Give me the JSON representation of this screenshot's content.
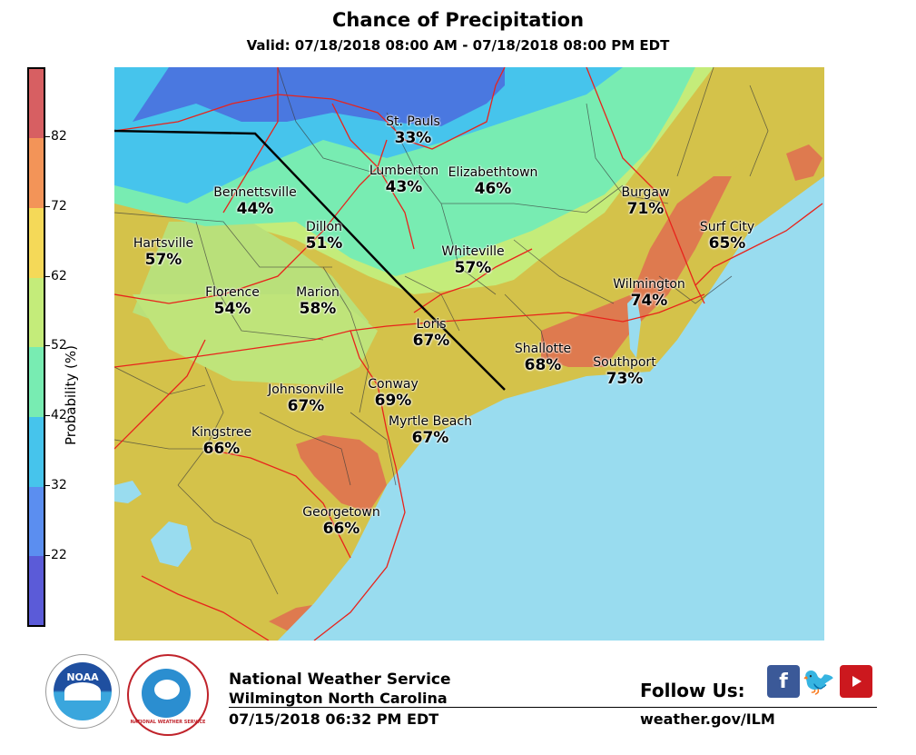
{
  "header": {
    "title": "Chance of Precipitation",
    "valid": "Valid: 07/18/2018 08:00 AM - 07/18/2018 08:00 PM EDT"
  },
  "legend": {
    "label": "Probability (%)",
    "ticks": [
      "82",
      "72",
      "62",
      "52",
      "42",
      "32",
      "22"
    ],
    "colors": [
      "#d75f62",
      "#f39458",
      "#f5d958",
      "#c4ec7a",
      "#78ecb2",
      "#46c4ec",
      "#5b8ef0",
      "#5b5bd8"
    ]
  },
  "cities": [
    {
      "name": "St. Pauls",
      "pct": "33%"
    },
    {
      "name": "Lumberton",
      "pct": "43%"
    },
    {
      "name": "Elizabethtown",
      "pct": "46%"
    },
    {
      "name": "Bennettsville",
      "pct": "44%"
    },
    {
      "name": "Burgaw",
      "pct": "71%"
    },
    {
      "name": "Dillon",
      "pct": "51%"
    },
    {
      "name": "Surf City",
      "pct": "65%"
    },
    {
      "name": "Hartsville",
      "pct": "57%"
    },
    {
      "name": "Whiteville",
      "pct": "57%"
    },
    {
      "name": "Florence",
      "pct": "54%"
    },
    {
      "name": "Marion",
      "pct": "58%"
    },
    {
      "name": "Wilmington",
      "pct": "74%"
    },
    {
      "name": "Loris",
      "pct": "67%"
    },
    {
      "name": "Shallotte",
      "pct": "68%"
    },
    {
      "name": "Southport",
      "pct": "73%"
    },
    {
      "name": "Johnsonville",
      "pct": "67%"
    },
    {
      "name": "Conway",
      "pct": "69%"
    },
    {
      "name": "Myrtle Beach",
      "pct": "67%"
    },
    {
      "name": "Kingstree",
      "pct": "66%"
    },
    {
      "name": "Georgetown",
      "pct": "66%"
    }
  ],
  "footer": {
    "office": "National Weather Service",
    "location": "Wilmington North Carolina",
    "issued": "07/15/2018 06:32 PM EDT",
    "follow": "Follow Us:",
    "url": "weather.gov/ILM",
    "noaa_text": "NOAA",
    "nws_seal_text": "NATIONAL WEATHER SERVICE"
  },
  "colors": {
    "ocean": "#99dcef",
    "land_base": "#d4c24a",
    "roads": "#e8231b",
    "borders": "#000000"
  }
}
